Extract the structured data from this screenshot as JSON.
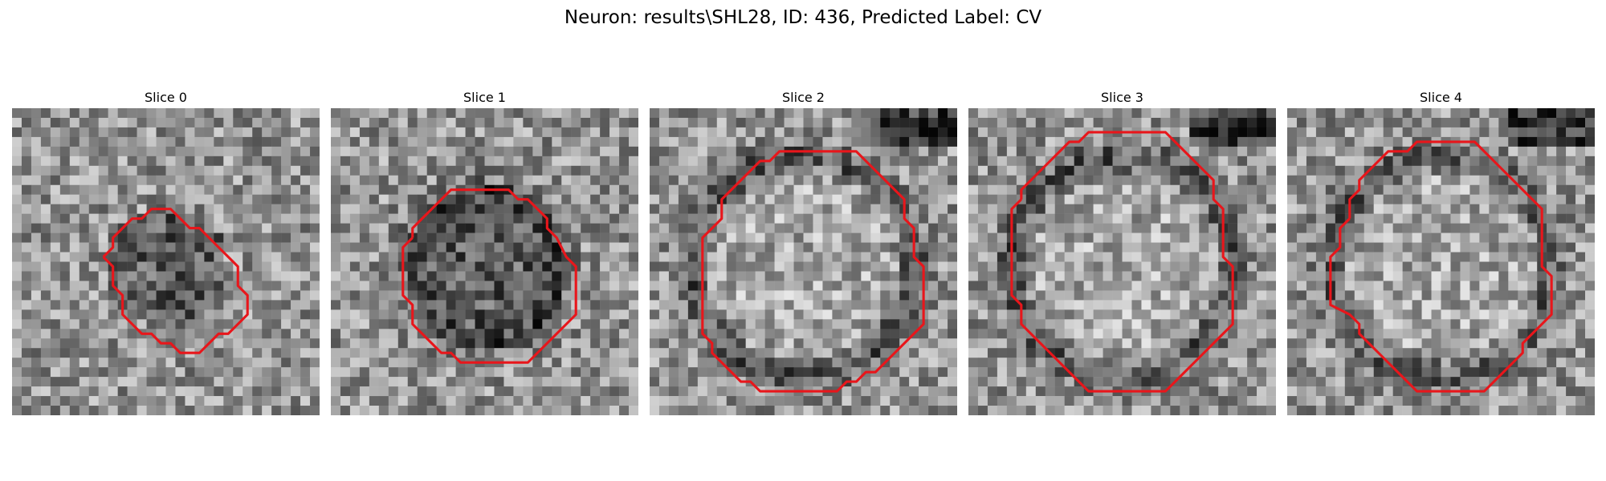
{
  "figure": {
    "title": "Neuron: results\\SHL28, ID: 436, Predicted Label: CV",
    "contour_color": "#e8161b"
  },
  "panels": [
    {
      "title": "Slice 0",
      "seed": 11,
      "ring_strength": 0.0,
      "dark_interior": true
    },
    {
      "title": "Slice 1",
      "seed": 23,
      "ring_strength": 0.35,
      "dark_interior": true
    },
    {
      "title": "Slice 2",
      "seed": 37,
      "ring_strength": 0.7,
      "dark_interior": false
    },
    {
      "title": "Slice 3",
      "seed": 51,
      "ring_strength": 0.7,
      "dark_interior": false
    },
    {
      "title": "Slice 4",
      "seed": 67,
      "ring_strength": 0.6,
      "dark_interior": false
    }
  ]
}
